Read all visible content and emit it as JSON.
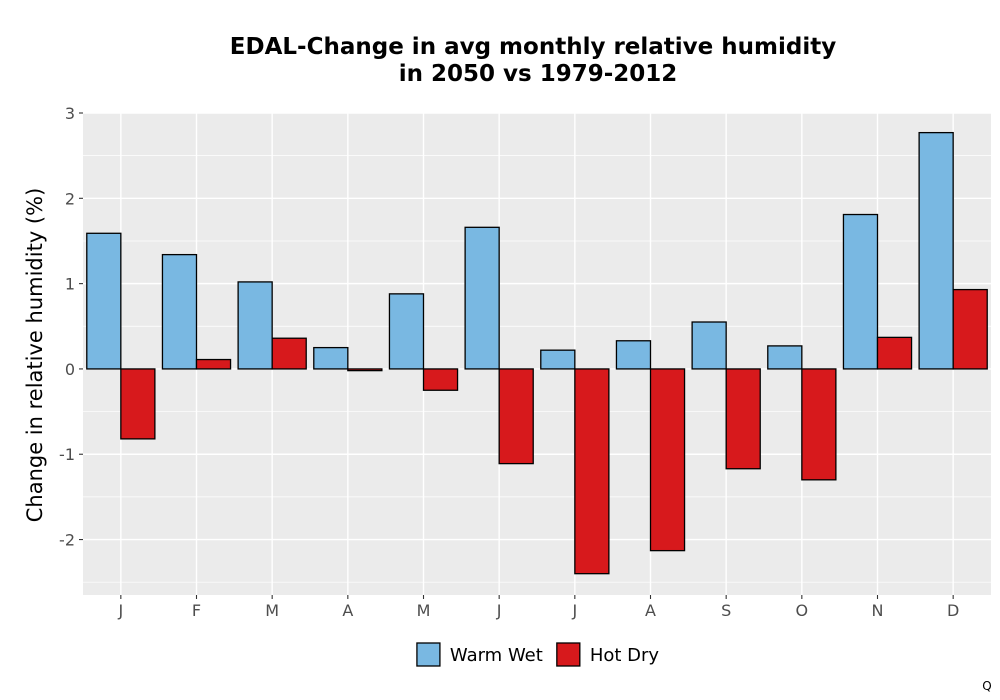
{
  "chart_data": {
    "type": "bar",
    "title_lines": [
      "EDAL-Change in avg monthly relative humidity",
      "in 2050 vs 1979-2012"
    ],
    "xlabel": "",
    "ylabel": "Change in relative humidity (%)",
    "categories": [
      "J",
      "F",
      "M",
      "A",
      "M",
      "J",
      "J",
      "A",
      "S",
      "O",
      "N",
      "D"
    ],
    "series": [
      {
        "name": "Warm Wet",
        "color": "#79b8e2",
        "values": [
          1.59,
          1.34,
          1.02,
          0.25,
          0.88,
          1.66,
          0.22,
          0.33,
          0.55,
          0.27,
          1.81,
          2.77
        ]
      },
      {
        "name": "Hot Dry",
        "color": "#d7191c",
        "values": [
          -0.82,
          0.11,
          0.36,
          -0.02,
          -0.25,
          -1.11,
          -2.4,
          -2.13,
          -1.17,
          -1.3,
          0.37,
          0.93
        ]
      }
    ],
    "ylim": [
      -2.65,
      3.0
    ],
    "yticks": [
      -2,
      -1,
      0,
      1,
      2,
      3
    ],
    "ytick_labels": [
      "-2",
      "-1",
      "0",
      "1",
      "2",
      "3"
    ],
    "grid": true,
    "legend_position": "bottom",
    "panel_background": "#ebebeb",
    "grid_color": "#ffffff",
    "bar_outline": "#000000"
  },
  "corner_mark": "Q"
}
